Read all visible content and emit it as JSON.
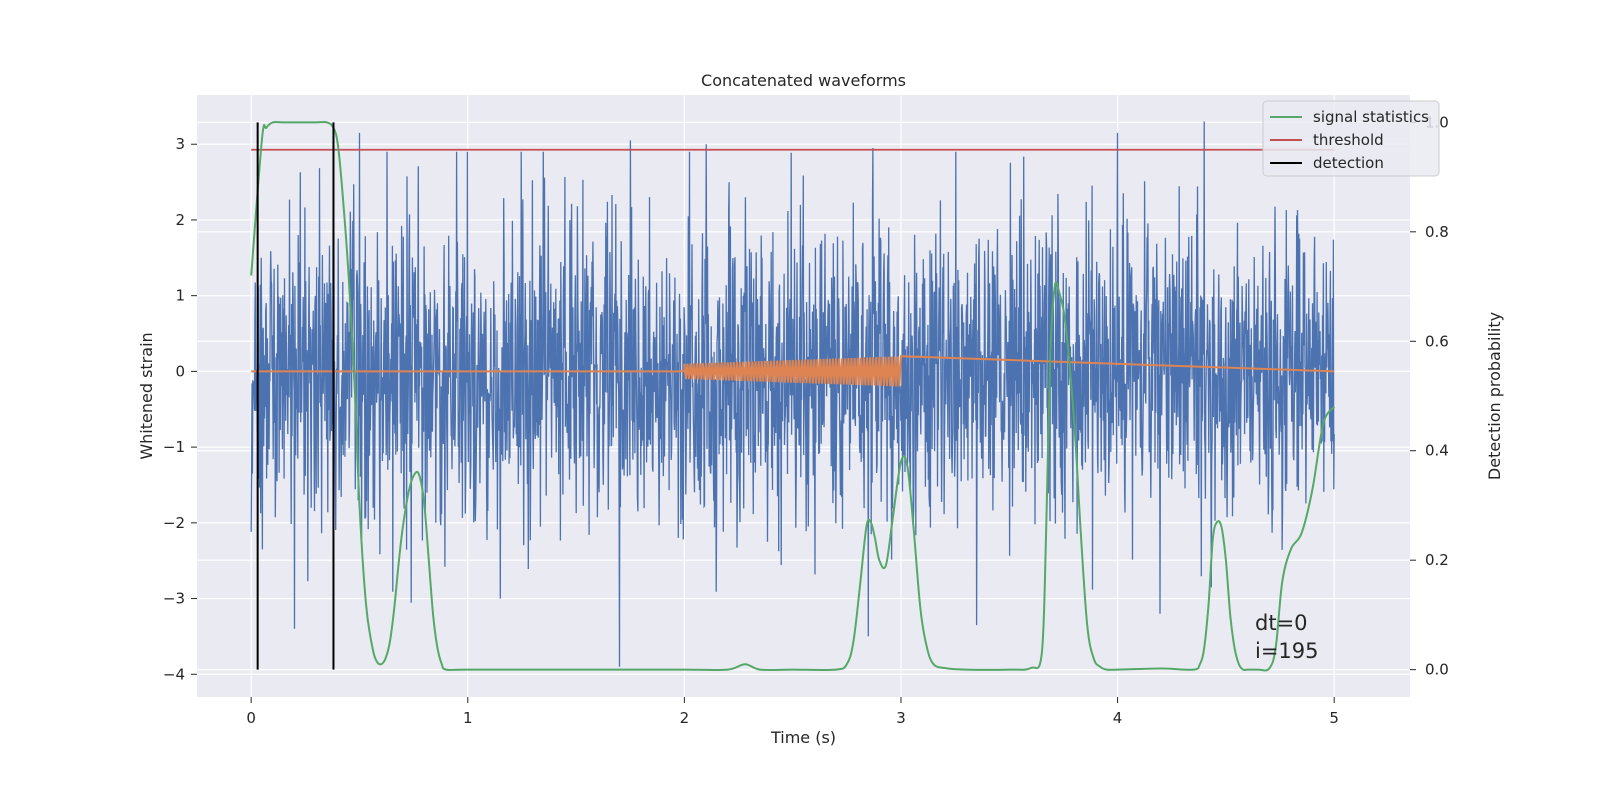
{
  "chart_data": {
    "type": "line",
    "title": "Concatenated waveforms",
    "xlabel": "Time (s)",
    "ylabel": "Whitened strain",
    "y2label": "Detection probability",
    "xlim": [
      -0.25,
      5.35
    ],
    "ylim": [
      -4.3,
      3.65
    ],
    "y2lim": [
      -0.05,
      1.05
    ],
    "x_ticks": [
      0,
      1,
      2,
      3,
      4,
      5
    ],
    "y_ticks": [
      -4,
      -3,
      -2,
      -1,
      0,
      1,
      2,
      3
    ],
    "y2_ticks": [
      0.0,
      0.2,
      0.4,
      0.6,
      0.8,
      1.0
    ],
    "grid": true,
    "legend_position": "top-right",
    "colors": {
      "noise": "#4c72b0",
      "injection": "#dd8452",
      "signal_statistics": "#55a868",
      "threshold": "#c44e52",
      "detection": "#000000",
      "background": "#eaeaf2",
      "grid": "#ffffff"
    },
    "series": [
      {
        "name": "",
        "role": "noise",
        "axis": "left",
        "x_range": [
          0,
          5
        ],
        "typical_amplitude": 1.0,
        "peaks": [
          {
            "x": 0.38,
            "y": 3.1
          },
          {
            "x": 0.5,
            "y": 3.15
          },
          {
            "x": 1.75,
            "y": 3.05
          },
          {
            "x": 2.1,
            "y": 3.0
          },
          {
            "x": 2.87,
            "y": 2.95
          },
          {
            "x": 4.0,
            "y": 3.15
          },
          {
            "x": 4.4,
            "y": 3.3
          },
          {
            "x": 1.7,
            "y": -3.9
          },
          {
            "x": 2.85,
            "y": -3.5
          },
          {
            "x": 0.2,
            "y": -3.4
          },
          {
            "x": 1.15,
            "y": -3.0
          },
          {
            "x": 3.35,
            "y": -3.35
          }
        ]
      },
      {
        "name": "",
        "role": "injection",
        "axis": "left",
        "x_range": [
          2.0,
          3.0
        ],
        "baseline": 0,
        "amplitude_start": 0.1,
        "amplitude_end": 0.2
      },
      {
        "name": "signal statistics",
        "axis": "right",
        "x": [
          0,
          0.05,
          0.07,
          0.1,
          0.15,
          0.2,
          0.3,
          0.35,
          0.38,
          0.4,
          0.42,
          0.45,
          0.48,
          0.5,
          0.53,
          0.56,
          0.58,
          0.6,
          0.62,
          0.64,
          0.66,
          0.68,
          0.7,
          0.73,
          0.76,
          0.78,
          0.8,
          0.82,
          0.84,
          0.86,
          0.88,
          0.9,
          1.0,
          1.5,
          2.0,
          2.2,
          2.28,
          2.35,
          2.5,
          2.7,
          2.75,
          2.78,
          2.81,
          2.84,
          2.86,
          2.88,
          2.9,
          2.93,
          2.96,
          3.0,
          3.03,
          3.06,
          3.09,
          3.12,
          3.15,
          3.2,
          3.3,
          3.5,
          3.6,
          3.65,
          3.67,
          3.69,
          3.71,
          3.73,
          3.76,
          3.8,
          3.83,
          3.86,
          3.89,
          3.92,
          3.95,
          4.0,
          4.2,
          4.35,
          4.38,
          4.4,
          4.42,
          4.44,
          4.46,
          4.48,
          4.5,
          4.52,
          4.54,
          4.56,
          4.58,
          4.6,
          4.65,
          4.7,
          4.73,
          4.76,
          4.8,
          4.85,
          4.9,
          4.95,
          5.0
        ],
        "y": [
          0.72,
          0.97,
          0.99,
          1.0,
          1.0,
          1.0,
          1.0,
          1.0,
          0.99,
          0.96,
          0.88,
          0.72,
          0.5,
          0.3,
          0.12,
          0.04,
          0.015,
          0.01,
          0.02,
          0.05,
          0.11,
          0.19,
          0.26,
          0.33,
          0.36,
          0.35,
          0.3,
          0.2,
          0.1,
          0.04,
          0.01,
          0.0,
          0.0,
          0.0,
          0.0,
          0.0,
          0.01,
          0.0,
          0.0,
          0.0,
          0.01,
          0.05,
          0.15,
          0.26,
          0.27,
          0.24,
          0.2,
          0.19,
          0.27,
          0.38,
          0.37,
          0.25,
          0.11,
          0.04,
          0.01,
          0.003,
          0.0,
          0.0,
          0.003,
          0.03,
          0.25,
          0.58,
          0.7,
          0.69,
          0.63,
          0.45,
          0.25,
          0.08,
          0.02,
          0.005,
          0.0,
          0.0,
          0.002,
          0.0,
          0.01,
          0.04,
          0.12,
          0.24,
          0.27,
          0.26,
          0.2,
          0.1,
          0.04,
          0.01,
          0.0,
          0.0,
          0.0,
          0.002,
          0.04,
          0.16,
          0.22,
          0.25,
          0.33,
          0.45,
          0.48
        ],
        "color_key": "signal_statistics"
      },
      {
        "name": "threshold",
        "axis": "right",
        "x": [
          0,
          5
        ],
        "y": [
          0.95,
          0.95
        ],
        "color_key": "threshold"
      },
      {
        "name": "detection",
        "axis": "right",
        "type": "vlines",
        "x": [
          0.03,
          0.38
        ],
        "y_range": [
          0.0,
          1.0
        ],
        "color_key": "detection"
      }
    ],
    "annotations": [
      "dt=0",
      "i=195"
    ]
  }
}
